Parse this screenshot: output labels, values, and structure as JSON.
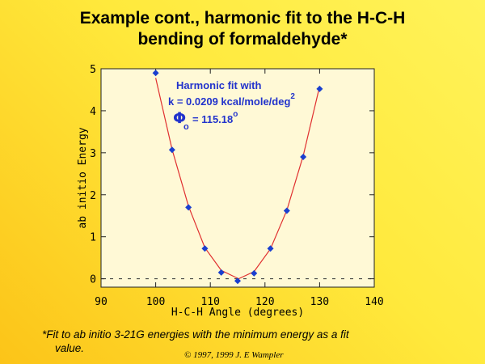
{
  "slide": {
    "title_line1": "Example cont., harmonic fit to the H-C-H",
    "title_line2": "bending of formaldehyde*",
    "footnote_line1": "*Fit to ab initio 3-21G energies with the minimum energy as a fit",
    "footnote_line2": "value.",
    "copyright": "© 1997, 1999 J. E Wampler"
  },
  "colors": {
    "background_top": "#fff35a",
    "background_bottom": "#fcc418",
    "plot_area": "#fff9d6",
    "points": "#1a3fcf",
    "fit_line": "#e03030",
    "annotation_text": "#2233cc"
  },
  "chart_data": {
    "type": "scatter",
    "title": "",
    "xlabel": "H-C-H Angle (degrees)",
    "ylabel": "ab initio Energy",
    "xlim": [
      90,
      140
    ],
    "ylim": [
      -0.2,
      5
    ],
    "x_ticks": [
      90,
      100,
      110,
      120,
      130,
      140
    ],
    "y_ticks": [
      0,
      1,
      2,
      3,
      4,
      5
    ],
    "grid": false,
    "zero_line": true,
    "series": [
      {
        "kind": "points",
        "x": [
          100,
          103,
          106,
          109,
          112,
          115,
          118,
          121,
          124,
          127,
          130
        ],
        "y": [
          4.9,
          3.07,
          1.7,
          0.72,
          0.15,
          -0.05,
          0.13,
          0.72,
          1.62,
          2.9,
          4.52
        ]
      },
      {
        "kind": "fit-line",
        "x": [
          100,
          103,
          106,
          109,
          112,
          115.18,
          118,
          121,
          124,
          127,
          130
        ],
        "y": [
          4.78,
          3.08,
          1.73,
          0.74,
          0.2,
          0.0,
          0.17,
          0.71,
          1.63,
          2.93,
          4.58
        ]
      }
    ],
    "annotation": {
      "line1": "Harmonic fit with",
      "line2": "k = 0.0209 kcal/mole/deg",
      "line2_sup": "2",
      "phi_symbol": "Φ",
      "phi_sub": "o",
      "line3": "= 115.18",
      "line3_sup": "o"
    }
  }
}
